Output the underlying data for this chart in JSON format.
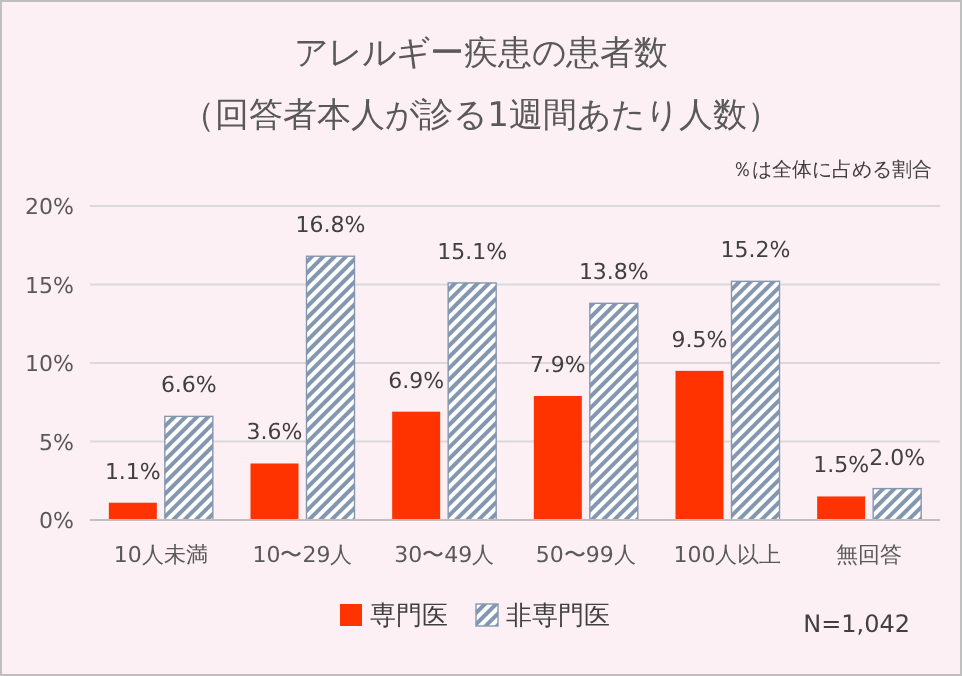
{
  "chart_data": {
    "type": "bar",
    "title": "アレルギー疾患の患者数",
    "subtitle": "（回答者本人が診る1週間あたり人数）",
    "annotations": [
      "％は全体に占める割合",
      "N=1,042"
    ],
    "categories": [
      "10人未満",
      "10〜29人",
      "30〜49人",
      "50〜99人",
      "100人以上",
      "無回答"
    ],
    "series": [
      {
        "name": "専門医",
        "color": "#ff3300",
        "values": [
          1.1,
          3.6,
          6.9,
          7.9,
          9.5,
          1.5
        ],
        "value_labels": [
          "1.1%",
          "3.6%",
          "6.9%",
          "7.9%",
          "9.5%",
          "1.5%"
        ]
      },
      {
        "name": "非専門医",
        "color": "#8497b0",
        "values": [
          6.6,
          16.8,
          15.1,
          13.8,
          15.2,
          2.0
        ],
        "value_labels": [
          "6.6%",
          "16.8%",
          "15.1%",
          "13.8%",
          "15.2%",
          "2.0%"
        ]
      }
    ],
    "ylim": [
      0,
      20
    ],
    "yticks": [
      {
        "value": 0,
        "label": "0%"
      },
      {
        "value": 5,
        "label": "5%"
      },
      {
        "value": 10,
        "label": "10%"
      },
      {
        "value": 15,
        "label": "15%"
      },
      {
        "value": 20,
        "label": "20%"
      }
    ],
    "grid": "y",
    "legend": "bottom"
  }
}
